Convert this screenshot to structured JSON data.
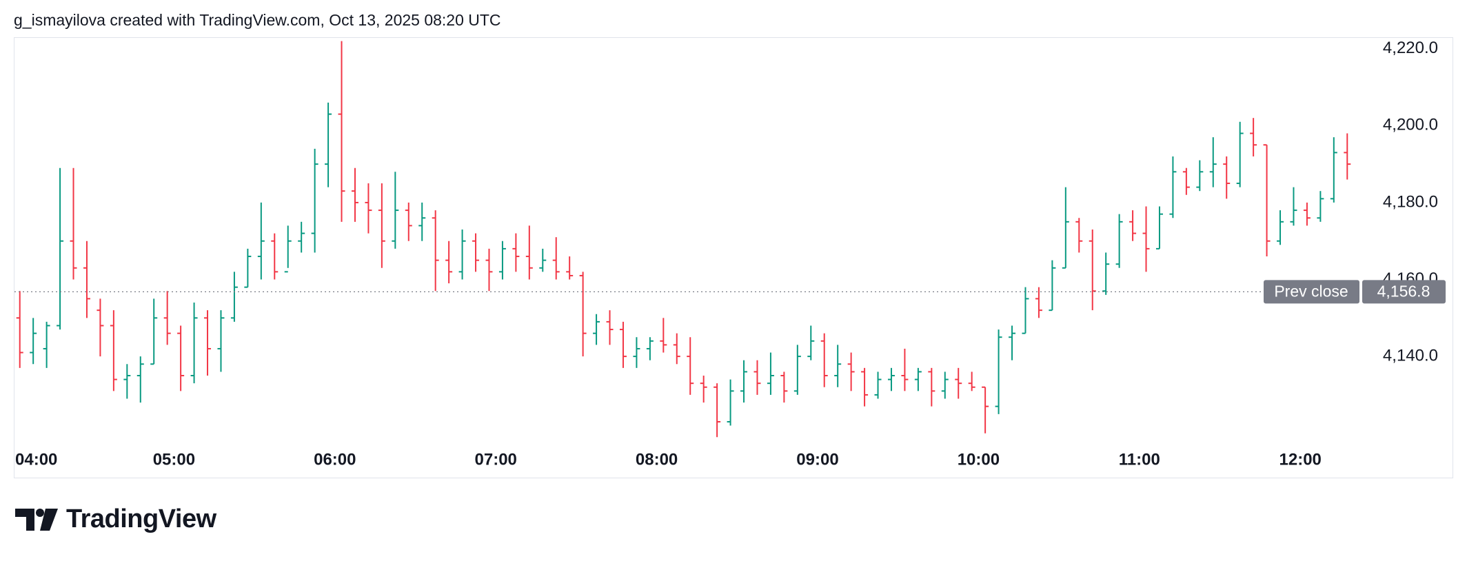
{
  "header": "g_ismayilova created with TradingView.com, Oct 13, 2025 08:20 UTC",
  "logo": "TradingView",
  "chart_data": {
    "type": "ohlc",
    "x": [
      "04:00",
      "04:05",
      "04:10",
      "04:15",
      "04:20",
      "04:25",
      "04:30",
      "04:35",
      "04:40",
      "04:45",
      "04:50",
      "04:55",
      "05:00",
      "05:05",
      "05:10",
      "05:15",
      "05:20",
      "05:25",
      "05:30",
      "05:35",
      "05:40",
      "05:45",
      "05:50",
      "05:55",
      "06:00",
      "06:05",
      "06:10",
      "06:15",
      "06:20",
      "06:25",
      "06:30",
      "06:35",
      "06:40",
      "06:45",
      "06:50",
      "06:55",
      "07:00",
      "07:05",
      "07:10",
      "07:15",
      "07:20",
      "07:25",
      "07:30",
      "07:35",
      "07:40",
      "07:45",
      "07:50",
      "07:55",
      "08:00",
      "08:05",
      "08:10",
      "08:15",
      "08:20",
      "08:25",
      "08:30",
      "08:35",
      "08:40",
      "08:45",
      "08:50",
      "08:55",
      "09:00",
      "09:05",
      "09:10",
      "09:15",
      "09:20",
      "09:25",
      "09:30",
      "09:35",
      "09:40",
      "09:45",
      "09:50",
      "09:55",
      "10:00",
      "10:05",
      "10:10",
      "10:15",
      "10:20",
      "10:25",
      "10:30",
      "10:35",
      "10:40",
      "10:45",
      "10:50",
      "10:55",
      "11:00",
      "11:05",
      "11:10",
      "11:15",
      "11:20",
      "11:25",
      "11:30",
      "11:35",
      "11:40",
      "11:45",
      "11:50",
      "11:55",
      "12:00",
      "12:05",
      "12:10",
      "12:15"
    ],
    "open": [
      4150,
      4141,
      4142,
      4148,
      4170,
      4163,
      4152,
      4148,
      4134,
      4135,
      4138,
      4150,
      4146,
      4135,
      4150,
      4142,
      4150,
      4158,
      4166,
      4170,
      4162,
      4170,
      4172,
      4190,
      4203,
      4183,
      4180,
      4178,
      4170,
      4178,
      4174,
      4176,
      4165,
      4162,
      4170,
      4165,
      4162,
      4168,
      4166,
      4163,
      4165,
      4162,
      4161,
      4146,
      4149,
      4147,
      4140,
      4142,
      4144,
      4143,
      4140,
      4133,
      4132,
      4123,
      4131,
      4136,
      4133,
      4135,
      4131,
      4140,
      4144,
      4135,
      4138,
      4136,
      4130,
      4134,
      4135,
      4134,
      4136,
      4131,
      4134,
      4133,
      4132,
      4127,
      4145,
      4146,
      4155,
      4152,
      4163,
      4175,
      4170,
      4157,
      4164,
      4175,
      4172,
      4168,
      4177,
      4188,
      4184,
      4188,
      4190,
      4185,
      4198,
      4195,
      4170,
      4175,
      4178,
      4176,
      4181,
      4193
    ],
    "high": [
      4157,
      4150,
      4149,
      4189,
      4189,
      4170,
      4155,
      4152,
      4138,
      4140,
      4155,
      4157,
      4148,
      4154,
      4152,
      4152,
      4162,
      4168,
      4180,
      4172,
      4174,
      4175,
      4194,
      4206,
      4222,
      4189,
      4185,
      4185,
      4188,
      4180,
      4180,
      4178,
      4170,
      4173,
      4172,
      4168,
      4170,
      4172,
      4174,
      4168,
      4171,
      4166,
      4162,
      4151,
      4152,
      4149,
      4145,
      4145,
      4150,
      4146,
      4145,
      4135,
      4133,
      4134,
      4139,
      4139,
      4141,
      4136,
      4143,
      4148,
      4146,
      4143,
      4141,
      4137,
      4136,
      4137,
      4142,
      4137,
      4137,
      4136,
      4137,
      4136,
      4132,
      4147,
      4148,
      4158,
      4158,
      4165,
      4184,
      4176,
      4173,
      4167,
      4177,
      4178,
      4179,
      4179,
      4192,
      4189,
      4191,
      4197,
      4192,
      4201,
      4202,
      4195,
      4178,
      4184,
      4180,
      4183,
      4197,
      4198
    ],
    "low": [
      4137,
      4138,
      4137,
      4147,
      4160,
      4150,
      4140,
      4131,
      4129,
      4128,
      4138,
      4143,
      4131,
      4133,
      4135,
      4136,
      4149,
      4158,
      4160,
      4160,
      4163,
      4167,
      4167,
      4184,
      4175,
      4175,
      4172,
      4163,
      4168,
      4170,
      4170,
      4157,
      4159,
      4160,
      4162,
      4157,
      4160,
      4162,
      4160,
      4162,
      4160,
      4160,
      4140,
      4143,
      4143,
      4137,
      4137,
      4139,
      4141,
      4138,
      4130,
      4128,
      4119,
      4122,
      4128,
      4130,
      4130,
      4128,
      4130,
      4139,
      4132,
      4132,
      4131,
      4127,
      4129,
      4131,
      4131,
      4131,
      4127,
      4129,
      4129,
      4131,
      4120,
      4125,
      4139,
      4146,
      4150,
      4152,
      4163,
      4167,
      4152,
      4156,
      4163,
      4170,
      4162,
      4168,
      4176,
      4182,
      4183,
      4184,
      4181,
      4184,
      4192,
      4166,
      4169,
      4174,
      4174,
      4175,
      4180,
      4186
    ],
    "close": [
      4141,
      4146,
      4148,
      4170,
      4163,
      4155,
      4148,
      4134,
      4135,
      4138,
      4150,
      4146,
      4135,
      4150,
      4142,
      4150,
      4158,
      4166,
      4170,
      4162,
      4170,
      4172,
      4190,
      4203,
      4183,
      4180,
      4178,
      4170,
      4178,
      4174,
      4176,
      4165,
      4162,
      4170,
      4165,
      4162,
      4168,
      4166,
      4163,
      4165,
      4162,
      4161,
      4146,
      4149,
      4147,
      4140,
      4142,
      4144,
      4143,
      4140,
      4133,
      4132,
      4123,
      4131,
      4136,
      4133,
      4135,
      4131,
      4140,
      4144,
      4135,
      4138,
      4136,
      4130,
      4134,
      4135,
      4134,
      4136,
      4131,
      4134,
      4133,
      4132,
      4127,
      4145,
      4146,
      4155,
      4152,
      4163,
      4175,
      4170,
      4157,
      4164,
      4175,
      4172,
      4168,
      4177,
      4188,
      4184,
      4188,
      4190,
      4185,
      4198,
      4195,
      4170,
      4175,
      4178,
      4176,
      4181,
      4193,
      4190
    ],
    "up_color": "#089981",
    "down_color": "#f23645",
    "ylim": [
      4108.3,
      4223
    ],
    "yticks": [
      {
        "value": 4140,
        "label": "4,140.0"
      },
      {
        "value": 4160,
        "label": "4,160.0"
      },
      {
        "value": 4180,
        "label": "4,180.0"
      },
      {
        "value": 4200,
        "label": "4,200.0"
      },
      {
        "value": 4220,
        "label": "4,220.0"
      }
    ],
    "xticks": [
      "04:00",
      "05:00",
      "06:00",
      "07:00",
      "08:00",
      "09:00",
      "10:00",
      "11:00",
      "12:00"
    ],
    "prev_close": {
      "label": "Prev close",
      "value": 4156.8,
      "value_label": "4,156.8"
    }
  }
}
